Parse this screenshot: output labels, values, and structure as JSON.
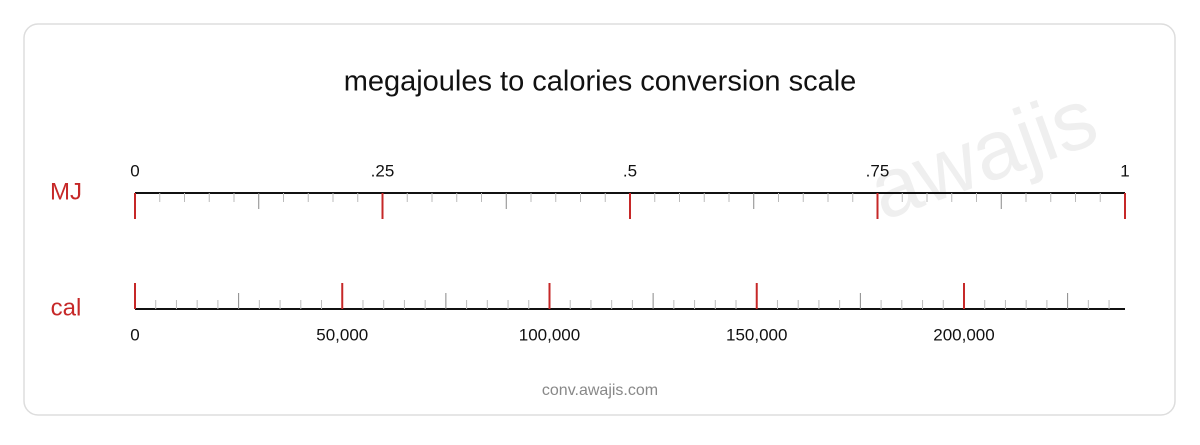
{
  "chart_data": {
    "type": "scale",
    "title": "megajoules to calories conversion scale",
    "watermark": "awajis",
    "footer": "conv.awajis.com",
    "axes": [
      {
        "unit": "MJ",
        "lim": [
          0,
          1
        ],
        "ticks": [
          0,
          {
            "value": 0.25,
            "label": ".25"
          },
          {
            "value": 0.5,
            "label": ".5"
          },
          {
            "value": 0.75,
            "label": ".75"
          },
          1
        ]
      },
      {
        "unit": "cal",
        "lim": [
          0,
          238846
        ],
        "ticks": [
          0,
          {
            "value": 50000,
            "label": "50,000"
          },
          {
            "value": 100000,
            "label": "100,000"
          },
          {
            "value": 150000,
            "label": "150,000"
          },
          {
            "value": 200000,
            "label": "200,000"
          }
        ]
      }
    ],
    "color": "#c62828"
  }
}
